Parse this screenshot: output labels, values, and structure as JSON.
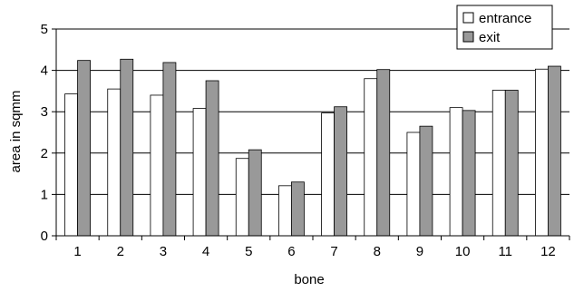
{
  "chart_data": {
    "type": "bar",
    "title": "",
    "xlabel": "bone",
    "ylabel": "area in sqmm",
    "categories": [
      "1",
      "2",
      "3",
      "4",
      "5",
      "6",
      "7",
      "8",
      "9",
      "10",
      "11",
      "12"
    ],
    "series": [
      {
        "name": "entrance",
        "color": "#ffffff",
        "values": [
          3.43,
          3.55,
          3.4,
          3.08,
          1.87,
          1.21,
          2.97,
          3.8,
          2.5,
          3.1,
          3.52,
          4.03
        ]
      },
      {
        "name": "exit",
        "color": "#999999",
        "values": [
          4.24,
          4.27,
          4.19,
          3.75,
          2.08,
          1.3,
          3.12,
          4.02,
          2.65,
          3.03,
          3.52,
          4.1
        ]
      }
    ],
    "ylim": [
      0,
      5
    ],
    "yticks": [
      "0",
      "1",
      "2",
      "3",
      "4",
      "5"
    ],
    "grid": true,
    "legend": "top-right"
  }
}
